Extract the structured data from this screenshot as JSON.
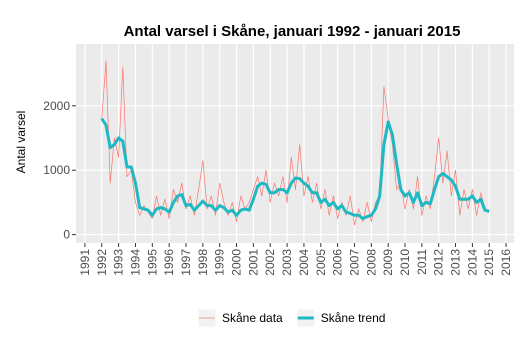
{
  "chart_data": {
    "type": "line",
    "title": "Antal varsel i Skåne, januari 1992 - januari 2015",
    "y_label": "Antal varsel",
    "x": [
      1992.0,
      1992.25,
      1992.5,
      1992.75,
      1993.0,
      1993.25,
      1993.5,
      1993.75,
      1994.0,
      1994.25,
      1994.5,
      1994.75,
      1995.0,
      1995.25,
      1995.5,
      1995.75,
      1996.0,
      1996.25,
      1996.5,
      1996.75,
      1997.0,
      1997.25,
      1997.5,
      1997.75,
      1998.0,
      1998.25,
      1998.5,
      1998.75,
      1999.0,
      1999.25,
      1999.5,
      1999.75,
      2000.0,
      2000.25,
      2000.5,
      2000.75,
      2001.0,
      2001.25,
      2001.5,
      2001.75,
      2002.0,
      2002.25,
      2002.5,
      2002.75,
      2003.0,
      2003.25,
      2003.5,
      2003.75,
      2004.0,
      2004.25,
      2004.5,
      2004.75,
      2005.0,
      2005.25,
      2005.5,
      2005.75,
      2006.0,
      2006.25,
      2006.5,
      2006.75,
      2007.0,
      2007.25,
      2007.5,
      2007.75,
      2008.0,
      2008.25,
      2008.5,
      2008.75,
      2009.0,
      2009.25,
      2009.5,
      2009.75,
      2010.0,
      2010.25,
      2010.5,
      2010.75,
      2011.0,
      2011.25,
      2011.5,
      2011.75,
      2012.0,
      2012.25,
      2012.5,
      2012.75,
      2013.0,
      2013.25,
      2013.5,
      2013.75,
      2014.0,
      2014.25,
      2014.5,
      2014.75,
      2015.0
    ],
    "series": [
      {
        "name": "Skåne data",
        "color": "#f8766d",
        "width": 0.7,
        "values": [
          1800,
          2700,
          800,
          1500,
          1200,
          2600,
          900,
          1000,
          500,
          300,
          450,
          350,
          250,
          600,
          300,
          550,
          250,
          700,
          500,
          800,
          400,
          600,
          300,
          700,
          1150,
          400,
          600,
          300,
          800,
          500,
          300,
          500,
          200,
          600,
          400,
          500,
          700,
          900,
          600,
          1000,
          500,
          800,
          600,
          900,
          500,
          1200,
          700,
          1400,
          600,
          900,
          500,
          800,
          400,
          700,
          300,
          600,
          250,
          500,
          300,
          600,
          150,
          400,
          200,
          500,
          200,
          500,
          600,
          2300,
          1800,
          1400,
          700,
          800,
          400,
          700,
          400,
          900,
          300,
          600,
          400,
          900,
          1500,
          800,
          1300,
          600,
          1000,
          300,
          700,
          400,
          700,
          300,
          650,
          400,
          350
        ]
      },
      {
        "name": "Skåne trend",
        "color": "#1fb8c3",
        "width": 3,
        "values": [
          1800,
          1700,
          1350,
          1400,
          1500,
          1450,
          1050,
          1050,
          800,
          420,
          400,
          380,
          300,
          400,
          420,
          400,
          350,
          500,
          600,
          620,
          450,
          470,
          380,
          450,
          520,
          450,
          450,
          380,
          450,
          420,
          350,
          380,
          300,
          380,
          400,
          380,
          550,
          750,
          800,
          780,
          650,
          650,
          700,
          700,
          650,
          800,
          880,
          870,
          800,
          750,
          650,
          650,
          500,
          550,
          450,
          500,
          400,
          450,
          350,
          330,
          300,
          300,
          250,
          280,
          300,
          400,
          600,
          1400,
          1750,
          1550,
          1100,
          700,
          600,
          650,
          500,
          650,
          450,
          500,
          480,
          700,
          900,
          950,
          900,
          850,
          750,
          550,
          550,
          550,
          600,
          500,
          550,
          380,
          360
        ]
      }
    ],
    "xlim": [
      1990.47,
      2016.47
    ],
    "xticks": [
      1991,
      1992,
      1993,
      1994,
      1995,
      1996,
      1997,
      1998,
      1999,
      2000,
      2001,
      2002,
      2003,
      2004,
      2005,
      2006,
      2007,
      2008,
      2009,
      2010,
      2011,
      2012,
      2013,
      2014,
      2015,
      2016
    ],
    "ylim": [
      -130,
      2960
    ],
    "yticks": [
      0,
      1000,
      2000
    ],
    "grid": true,
    "legend": "bottom"
  }
}
